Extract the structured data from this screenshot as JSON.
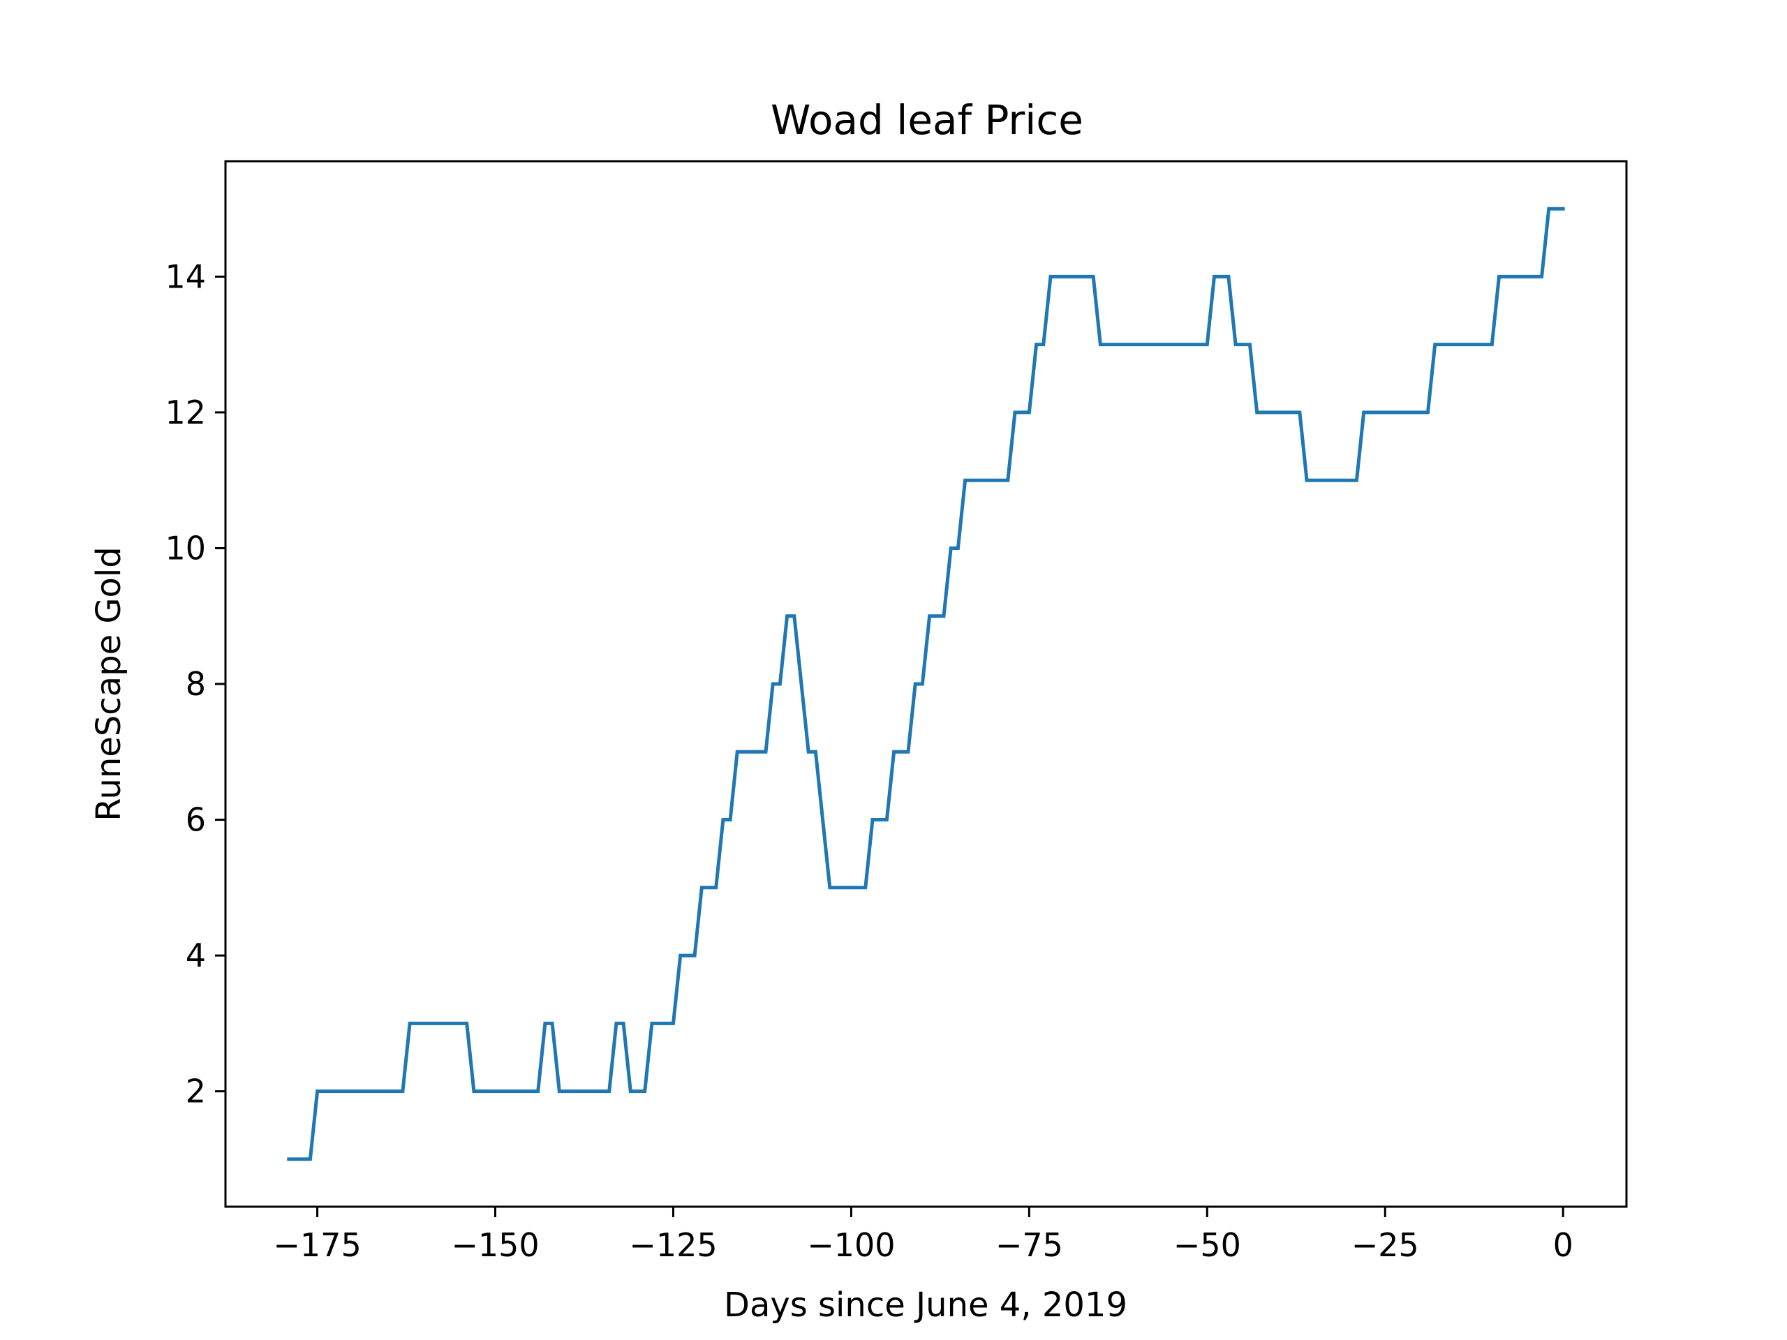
{
  "chart_data": {
    "type": "line",
    "title": "Woad leaf Price",
    "xlabel": "Days since June 4, 2019",
    "ylabel": "RuneScape Gold",
    "xlim": [
      -187.9,
      8.9
    ],
    "ylim": [
      0.3,
      15.7
    ],
    "xticks": [
      -175,
      -150,
      -125,
      -100,
      -75,
      -50,
      -25,
      0
    ],
    "xtick_labels": [
      "−175",
      "−150",
      "−125",
      "−100",
      "−75",
      "−50",
      "−25",
      "0"
    ],
    "yticks": [
      2,
      4,
      6,
      8,
      10,
      12,
      14
    ],
    "ytick_labels": [
      "2",
      "4",
      "6",
      "8",
      "10",
      "12",
      "14"
    ],
    "grid": false,
    "legend": "none",
    "series": [
      {
        "color": "#1f77b4",
        "points": [
          [
            -179,
            1
          ],
          [
            -176,
            1
          ],
          [
            -175,
            2
          ],
          [
            -163,
            2
          ],
          [
            -162,
            3
          ],
          [
            -154,
            3
          ],
          [
            -153,
            2
          ],
          [
            -144,
            2
          ],
          [
            -143,
            3
          ],
          [
            -142,
            3
          ],
          [
            -141,
            2
          ],
          [
            -134,
            2
          ],
          [
            -133,
            3
          ],
          [
            -132,
            3
          ],
          [
            -131,
            2
          ],
          [
            -129,
            2
          ],
          [
            -128,
            3
          ],
          [
            -125,
            3
          ],
          [
            -124,
            4
          ],
          [
            -122,
            4
          ],
          [
            -121,
            5
          ],
          [
            -119,
            5
          ],
          [
            -118,
            6
          ],
          [
            -117,
            6
          ],
          [
            -116,
            7
          ],
          [
            -112,
            7
          ],
          [
            -111,
            8
          ],
          [
            -110,
            8
          ],
          [
            -109,
            9
          ],
          [
            -108,
            9
          ],
          [
            -106,
            7
          ],
          [
            -105,
            7
          ],
          [
            -103,
            5
          ],
          [
            -98,
            5
          ],
          [
            -97,
            6
          ],
          [
            -95,
            6
          ],
          [
            -94,
            7
          ],
          [
            -92,
            7
          ],
          [
            -91,
            8
          ],
          [
            -90,
            8
          ],
          [
            -89,
            9
          ],
          [
            -87,
            9
          ],
          [
            -86,
            10
          ],
          [
            -85,
            10
          ],
          [
            -84,
            11
          ],
          [
            -78,
            11
          ],
          [
            -77,
            12
          ],
          [
            -75,
            12
          ],
          [
            -74,
            13
          ],
          [
            -73,
            13
          ],
          [
            -72,
            14
          ],
          [
            -66,
            14
          ],
          [
            -65,
            13
          ],
          [
            -50,
            13
          ],
          [
            -49,
            14
          ],
          [
            -47,
            14
          ],
          [
            -46,
            13
          ],
          [
            -44,
            13
          ],
          [
            -43,
            12
          ],
          [
            -37,
            12
          ],
          [
            -36,
            11
          ],
          [
            -29,
            11
          ],
          [
            -28,
            12
          ],
          [
            -19,
            12
          ],
          [
            -18,
            13
          ],
          [
            -10,
            13
          ],
          [
            -9,
            14
          ],
          [
            -3,
            14
          ],
          [
            -2,
            15
          ],
          [
            0,
            15
          ]
        ]
      }
    ]
  }
}
